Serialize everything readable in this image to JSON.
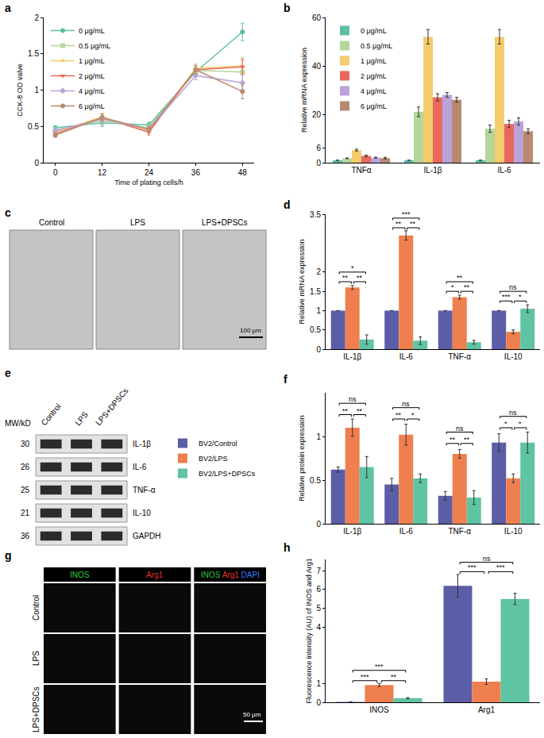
{
  "chart_data": [
    {
      "panel": "a",
      "type": "line",
      "x": [
        0,
        12,
        24,
        36,
        48
      ],
      "xlim": [
        -3,
        51
      ],
      "xticks": [
        0,
        12,
        24,
        36,
        48
      ],
      "ylim": [
        0,
        2
      ],
      "yticks": [
        0,
        0.5,
        1,
        1.5,
        2
      ],
      "x_label": "Time of plating cells/h",
      "y_label": "CCK-8 OD valve",
      "legend": "top left",
      "series": [
        {
          "name": "0 μg/mL",
          "color": "#5dbfa4",
          "marker": "circle",
          "values": [
            0.48,
            0.55,
            0.52,
            1.25,
            1.8
          ],
          "errors": [
            0.03,
            0.05,
            0.04,
            0.06,
            0.12
          ]
        },
        {
          "name": "0.5 μg/mL",
          "color": "#b5d69a",
          "marker": "square",
          "values": [
            0.45,
            0.58,
            0.48,
            1.27,
            1.25
          ],
          "errors": [
            0.03,
            0.05,
            0.04,
            0.06,
            0.2
          ]
        },
        {
          "name": "1 μg/mL",
          "color": "#f4cc6e",
          "marker": "triangle-up",
          "values": [
            0.42,
            0.63,
            0.44,
            1.3,
            1.33
          ],
          "errors": [
            0.03,
            0.05,
            0.04,
            0.06,
            0.1
          ]
        },
        {
          "name": "2 μg/mL",
          "color": "#e9685e",
          "marker": "triangle-down",
          "values": [
            0.4,
            0.62,
            0.42,
            1.28,
            1.32
          ],
          "errors": [
            0.03,
            0.05,
            0.04,
            0.06,
            0.1
          ]
        },
        {
          "name": "4 μg/mL",
          "color": "#b9a3d9",
          "marker": "diamond",
          "values": [
            0.44,
            0.6,
            0.46,
            1.2,
            1.1
          ],
          "errors": [
            0.03,
            0.05,
            0.04,
            0.06,
            0.1
          ]
        },
        {
          "name": "6 μg/mL",
          "color": "#b98a70",
          "marker": "circle",
          "values": [
            0.38,
            0.62,
            0.46,
            1.28,
            0.98
          ],
          "errors": [
            0.03,
            0.05,
            0.04,
            0.06,
            0.1
          ]
        }
      ]
    },
    {
      "panel": "b",
      "type": "bar",
      "categories": [
        "TNFα",
        "IL-1β",
        "IL-6"
      ],
      "ylim": [
        0,
        60
      ],
      "yticks": [
        0,
        6,
        20,
        40,
        60
      ],
      "y_label": "Relative mRNA expression",
      "legend": "top left",
      "series": [
        {
          "name": "0 μg/mL",
          "color": "#5dbfa4",
          "values": [
            1,
            1,
            1
          ],
          "errors": [
            0,
            0,
            0
          ]
        },
        {
          "name": "0.5 μg/mL",
          "color": "#b5d69a",
          "values": [
            1.8,
            21,
            14
          ],
          "errors": [
            0.15,
            2,
            1.5
          ]
        },
        {
          "name": "1 μg/mL",
          "color": "#f4cc6e",
          "values": [
            5.2,
            52,
            52
          ],
          "errors": [
            0.4,
            3,
            3
          ]
        },
        {
          "name": "2 μg/mL",
          "color": "#e9685e",
          "values": [
            2.8,
            27,
            16
          ],
          "errors": [
            0.3,
            1.5,
            1.5
          ]
        },
        {
          "name": "4 μg/mL",
          "color": "#b9a3d9",
          "values": [
            2.1,
            28,
            17
          ],
          "errors": [
            0.2,
            1,
            1.5
          ]
        },
        {
          "name": "6 μg/mL",
          "color": "#b98a70",
          "values": [
            1.9,
            26,
            13
          ],
          "errors": [
            0.3,
            1,
            1
          ]
        }
      ]
    },
    {
      "panel": "c",
      "type": "image",
      "columns": [
        "Control",
        "LPS",
        "LPS+DPSCs"
      ],
      "scale_bar": "100 μm"
    },
    {
      "panel": "d",
      "type": "bar",
      "categories": [
        "IL-1β",
        "IL-6",
        "TNF-α",
        "IL-10"
      ],
      "ylim": [
        0,
        3.5
      ],
      "yticks": [
        0,
        0.5,
        1,
        1.5,
        2,
        3.5
      ],
      "y_label": "Relative mRNA expression",
      "series": [
        {
          "name": "BV2/Control",
          "color": "#5b5ea6",
          "values": [
            1,
            1,
            1,
            1
          ],
          "errors": [
            0,
            0,
            0,
            0
          ]
        },
        {
          "name": "BV2/LPS",
          "color": "#f07f4f",
          "values": [
            1.6,
            2.95,
            1.35,
            0.45
          ],
          "errors": [
            0.05,
            0.12,
            0.05,
            0.05
          ]
        },
        {
          "name": "BV2/LPS+DPSCs",
          "color": "#5fc4a4",
          "values": [
            0.25,
            0.22,
            0.18,
            1.05
          ],
          "errors": [
            0.12,
            0.1,
            0.05,
            0.1
          ]
        }
      ],
      "significance": [
        {
          "category": "IL-1β",
          "from": "BV2/Control",
          "to": "BV2/LPS",
          "y": 1.75,
          "text": "**"
        },
        {
          "category": "IL-1β",
          "from": "BV2/LPS",
          "to": "BV2/LPS+DPSCs",
          "y": 1.75,
          "text": "**"
        },
        {
          "category": "IL-1β",
          "from": "BV2/Control",
          "to": "BV2/LPS+DPSCs",
          "y": 2.0,
          "text": "*"
        },
        {
          "category": "IL-6",
          "from": "BV2/Control",
          "to": "BV2/LPS",
          "y": 3.15,
          "text": "**"
        },
        {
          "category": "IL-6",
          "from": "BV2/LPS",
          "to": "BV2/LPS+DPSCs",
          "y": 3.15,
          "text": "**"
        },
        {
          "category": "IL-6",
          "from": "BV2/Control",
          "to": "BV2/LPS+DPSCs",
          "y": 3.4,
          "text": "***"
        },
        {
          "category": "TNF-α",
          "from": "BV2/Control",
          "to": "BV2/LPS",
          "y": 1.5,
          "text": "*"
        },
        {
          "category": "TNF-α",
          "from": "BV2/LPS",
          "to": "BV2/LPS+DPSCs",
          "y": 1.5,
          "text": "**"
        },
        {
          "category": "TNF-α",
          "from": "BV2/Control",
          "to": "BV2/LPS+DPSCs",
          "y": 1.75,
          "text": "**"
        },
        {
          "category": "IL-10",
          "from": "BV2/Control",
          "to": "BV2/LPS",
          "y": 1.25,
          "text": "***"
        },
        {
          "category": "IL-10",
          "from": "BV2/LPS",
          "to": "BV2/LPS+DPSCs",
          "y": 1.25,
          "text": "*"
        },
        {
          "category": "IL-10",
          "from": "BV2/Control",
          "to": "BV2/LPS+DPSCs",
          "y": 1.5,
          "text": "ns"
        }
      ]
    },
    {
      "panel": "e",
      "type": "blot",
      "header": "MW/kD",
      "lanes": [
        "Control",
        "LPS",
        "LPS+DPSCs"
      ],
      "rows": [
        {
          "mw": 30,
          "label": "IL-1β"
        },
        {
          "mw": 26,
          "label": "IL-6"
        },
        {
          "mw": 25,
          "label": "TNF-α"
        },
        {
          "mw": 21,
          "label": "IL-10"
        },
        {
          "mw": 36,
          "label": "GAPDH"
        }
      ]
    },
    {
      "panel": "f",
      "type": "bar",
      "categories": [
        "IL-1β",
        "IL-6",
        "TNF-α",
        "IL-10"
      ],
      "ylim": [
        0,
        1.5
      ],
      "yticks": [
        0,
        0.5,
        1
      ],
      "y_label": "Relative protein expression",
      "legend": "left",
      "series": [
        {
          "name": "BV2/Control",
          "color": "#5b5ea6",
          "values": [
            0.62,
            0.45,
            0.32,
            0.93
          ],
          "errors": [
            0.03,
            0.07,
            0.05,
            0.1
          ]
        },
        {
          "name": "BV2/LPS",
          "color": "#f07f4f",
          "values": [
            1.1,
            1.02,
            0.8,
            0.52
          ],
          "errors": [
            0.1,
            0.12,
            0.05,
            0.05
          ]
        },
        {
          "name": "BV2/LPS+DPSCs",
          "color": "#5fc4a4",
          "values": [
            0.65,
            0.52,
            0.3,
            0.93
          ],
          "errors": [
            0.12,
            0.05,
            0.08,
            0.12
          ]
        }
      ],
      "significance": [
        {
          "category": "IL-1β",
          "from": "BV2/Control",
          "to": "BV2/LPS",
          "y": 1.25,
          "text": "**"
        },
        {
          "category": "IL-1β",
          "from": "BV2/LPS",
          "to": "BV2/LPS+DPSCs",
          "y": 1.25,
          "text": "**"
        },
        {
          "category": "IL-1β",
          "from": "BV2/Control",
          "to": "BV2/LPS+DPSCs",
          "y": 1.38,
          "text": "ns"
        },
        {
          "category": "IL-6",
          "from": "BV2/Control",
          "to": "BV2/LPS",
          "y": 1.2,
          "text": "**"
        },
        {
          "category": "IL-6",
          "from": "BV2/LPS",
          "to": "BV2/LPS+DPSCs",
          "y": 1.2,
          "text": "*"
        },
        {
          "category": "IL-6",
          "from": "BV2/Control",
          "to": "BV2/LPS+DPSCs",
          "y": 1.33,
          "text": "ns"
        },
        {
          "category": "TNF-α",
          "from": "BV2/Control",
          "to": "BV2/LPS",
          "y": 0.92,
          "text": "**"
        },
        {
          "category": "TNF-α",
          "from": "BV2/LPS",
          "to": "BV2/LPS+DPSCs",
          "y": 0.92,
          "text": "**"
        },
        {
          "category": "TNF-α",
          "from": "BV2/Control",
          "to": "BV2/LPS+DPSCs",
          "y": 1.05,
          "text": "ns"
        },
        {
          "category": "IL-10",
          "from": "BV2/Control",
          "to": "BV2/LPS",
          "y": 1.1,
          "text": "*"
        },
        {
          "category": "IL-10",
          "from": "BV2/LPS",
          "to": "BV2/LPS+DPSCs",
          "y": 1.1,
          "text": "*"
        },
        {
          "category": "IL-10",
          "from": "BV2/Control",
          "to": "BV2/LPS+DPSCs",
          "y": 1.23,
          "text": "ns"
        }
      ]
    },
    {
      "panel": "g",
      "type": "image",
      "columns": [
        [
          {
            "text": "INOS",
            "color": "#2ecc40"
          }
        ],
        [
          {
            "text": "Arg1",
            "color": "#e8312f"
          }
        ],
        [
          {
            "text": "INOS",
            "color": "#2ecc40"
          },
          {
            "text": "Arg1",
            "color": "#e8312f"
          },
          {
            "text": "DAPI",
            "color": "#3a7bff"
          }
        ]
      ],
      "rows": [
        "Control",
        "LPS",
        "LPS+DPSCs"
      ],
      "scale_bar": "50 μm"
    },
    {
      "panel": "h",
      "type": "bar",
      "categories": [
        "INOS",
        "Arg1"
      ],
      "ylim": [
        0,
        7.6
      ],
      "yticks": [
        0,
        1,
        4,
        5,
        6,
        7
      ],
      "y_label": "Fluorescence intensity (AU) of INOS and Arg1",
      "series": [
        {
          "name": "BV2/Control",
          "color": "#5b5ea6",
          "values": [
            0.02,
            6.2
          ],
          "errors": [
            0.01,
            0.6
          ]
        },
        {
          "name": "BV2/LPS",
          "color": "#f07f4f",
          "values": [
            0.92,
            1.1
          ],
          "errors": [
            0.08,
            0.15
          ]
        },
        {
          "name": "BV2/LPS+DPSCs",
          "color": "#5fc4a4",
          "values": [
            0.22,
            5.5
          ],
          "errors": [
            0.03,
            0.3
          ]
        }
      ],
      "significance": [
        {
          "category": "INOS",
          "from": "BV2/Control",
          "to": "BV2/LPS",
          "y": 1.15,
          "text": "***"
        },
        {
          "category": "INOS",
          "from": "BV2/LPS",
          "to": "BV2/LPS+DPSCs",
          "y": 1.15,
          "text": "**"
        },
        {
          "category": "INOS",
          "from": "BV2/Control",
          "to": "BV2/LPS+DPSCs",
          "y": 1.7,
          "text": "***"
        },
        {
          "category": "Arg1",
          "from": "BV2/Control",
          "to": "BV2/LPS",
          "y": 6.95,
          "text": "***"
        },
        {
          "category": "Arg1",
          "from": "BV2/LPS",
          "to": "BV2/LPS+DPSCs",
          "y": 6.95,
          "text": "***"
        },
        {
          "category": "Arg1",
          "from": "BV2/Control",
          "to": "BV2/LPS+DPSCs",
          "y": 7.45,
          "text": "ns"
        }
      ]
    }
  ]
}
